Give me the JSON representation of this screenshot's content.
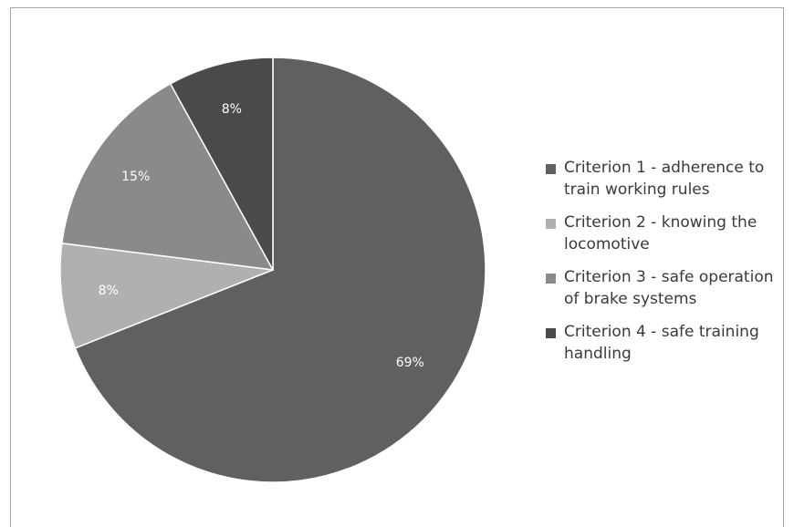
{
  "chart_data": {
    "type": "pie",
    "title": "",
    "slices": [
      {
        "label": "Criterion 1 - adherence to train working rules",
        "value": 69,
        "display": "69%",
        "color": "#606060"
      },
      {
        "label": "Criterion 2 - knowing the locomotive",
        "value": 8,
        "display": "8%",
        "color": "#b0b0b0"
      },
      {
        "label": "Criterion 3 - safe operation of brake systems",
        "value": 15,
        "display": "15%",
        "color": "#8a8a8a"
      },
      {
        "label": "Criterion 4 - safe training handling",
        "value": 8,
        "display": "8%",
        "color": "#4a4a4a"
      }
    ],
    "start_angle": "12 o'clock",
    "direction": "clockwise",
    "legend_position": "right"
  }
}
